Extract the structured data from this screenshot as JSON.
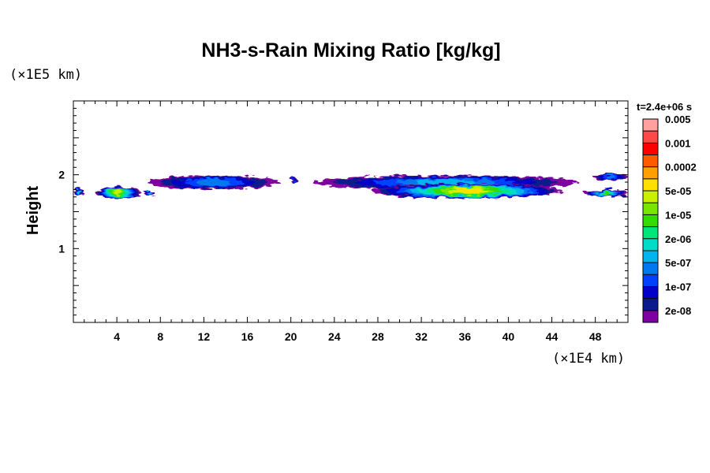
{
  "chart_data": {
    "type": "heatmap",
    "title": "NH3-s-Rain Mixing Ratio [kg/kg]",
    "xlabel": "",
    "ylabel": "Height",
    "x_unit_label": "(×1E4 km)",
    "y_unit_label": "(×1E5 km)",
    "time_label": "t=2.4e+06 s",
    "xlim": [
      0,
      51
    ],
    "ylim": [
      0,
      3
    ],
    "x_ticks": [
      4,
      8,
      12,
      16,
      20,
      24,
      28,
      32,
      36,
      40,
      44,
      48
    ],
    "y_ticks": [
      1,
      2
    ],
    "colorbar": {
      "colors": [
        "#7f00a0",
        "#0b1a8c",
        "#0000c8",
        "#0040ff",
        "#0078f0",
        "#00b4f0",
        "#00dcc8",
        "#00e67a",
        "#32dc00",
        "#78e600",
        "#c8f000",
        "#ffe000",
        "#ffa000",
        "#ff5a00",
        "#ff0000",
        "#ff4848",
        "#ffa0a0"
      ],
      "labels": [
        "2e-08",
        "1e-07",
        "5e-07",
        "2e-06",
        "1e-05",
        "5e-05",
        "0.0002",
        "0.001",
        "0.005"
      ]
    },
    "regions": [
      {
        "x0": 0.0,
        "x1": 1.0,
        "y0": 1.72,
        "y1": 1.82,
        "max_level": 7
      },
      {
        "x0": 2.0,
        "x1": 6.2,
        "y0": 1.68,
        "y1": 1.84,
        "max_level": 10
      },
      {
        "x0": 6.5,
        "x1": 7.5,
        "y0": 1.72,
        "y1": 1.78,
        "max_level": 6
      },
      {
        "x0": 6.8,
        "x1": 19.0,
        "y0": 1.8,
        "y1": 1.99,
        "max_level": 4
      },
      {
        "x0": 20.0,
        "x1": 20.6,
        "y0": 1.88,
        "y1": 1.96,
        "max_level": 3
      },
      {
        "x0": 22.0,
        "x1": 46.5,
        "y0": 1.8,
        "y1": 1.99,
        "max_level": 5
      },
      {
        "x0": 27.5,
        "x1": 45.0,
        "y0": 1.68,
        "y1": 1.88,
        "max_level": 11
      },
      {
        "x0": 47.0,
        "x1": 51.0,
        "y0": 1.7,
        "y1": 1.8,
        "max_level": 8
      },
      {
        "x0": 47.8,
        "x1": 51.0,
        "y0": 1.92,
        "y1": 2.02,
        "max_level": 4
      }
    ]
  }
}
